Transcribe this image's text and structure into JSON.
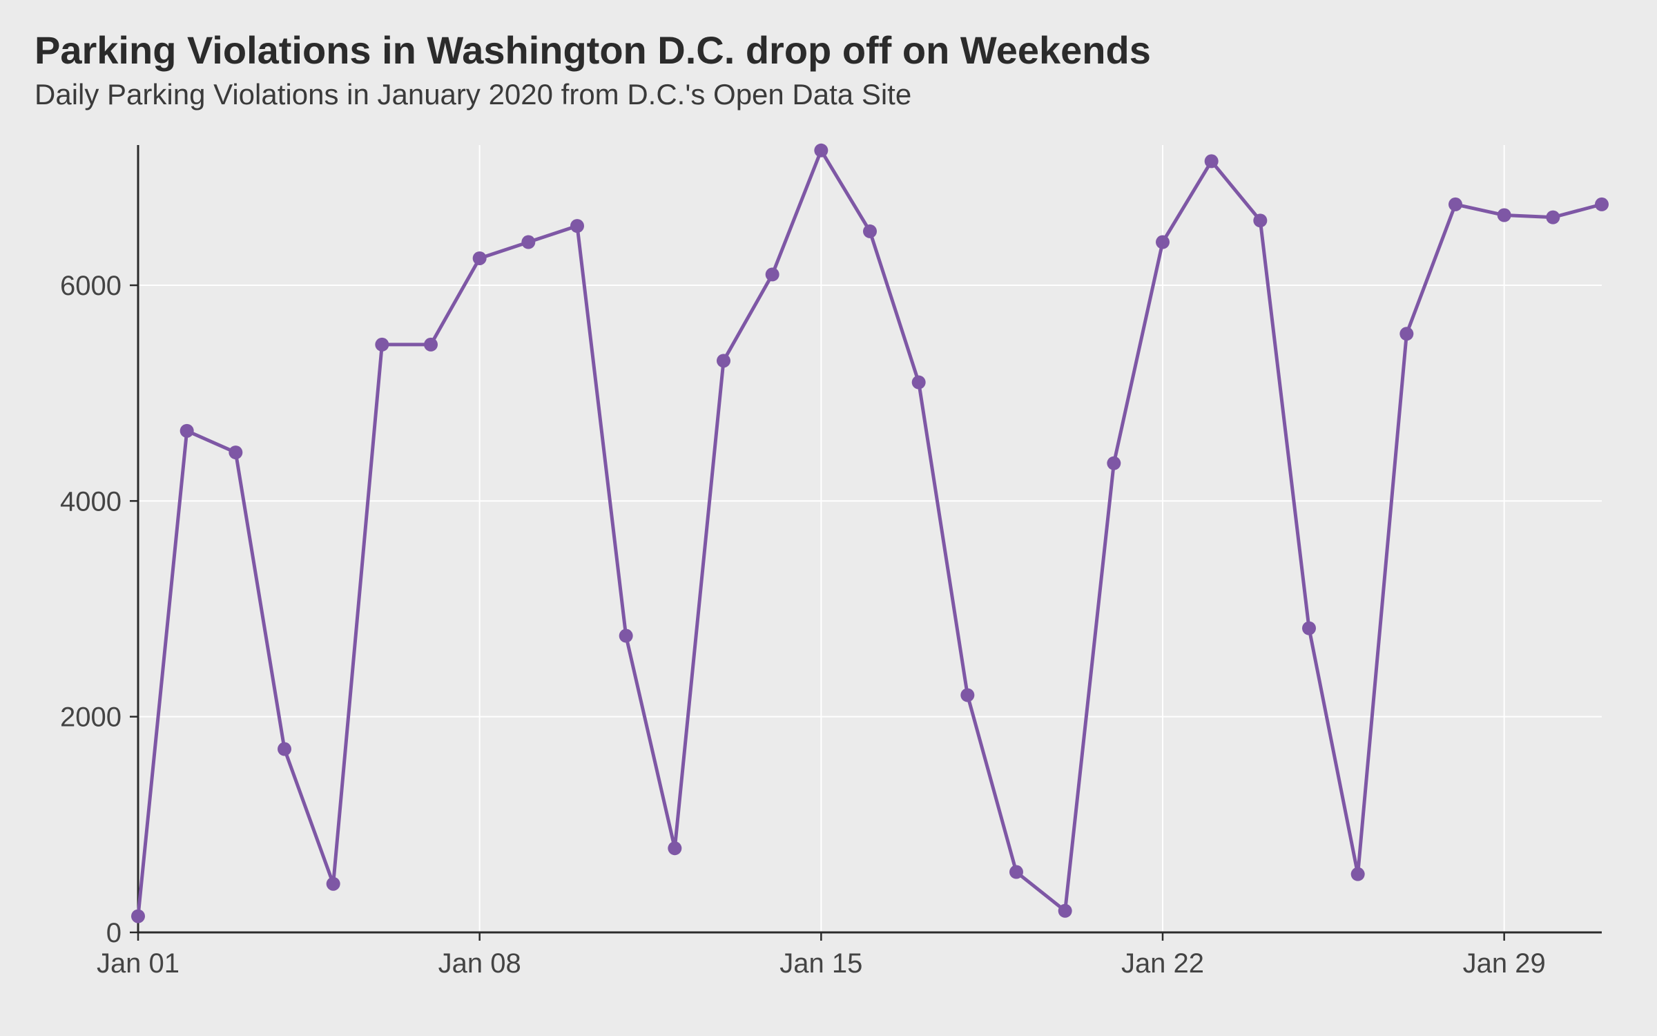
{
  "title": "Parking Violations in Washington D.C. drop off on Weekends",
  "subtitle": "Daily Parking Violations in January 2020 from D.C.'s Open Data Site",
  "chart": {
    "type": "line",
    "background_color": "#ebebeb",
    "panel_color": "#ebebeb",
    "grid_color": "#ffffff",
    "axis_color": "#2b2b2b",
    "tick_label_color": "#444444",
    "tick_label_fontsize": 40,
    "title_fontsize": 56,
    "subtitle_fontsize": 42,
    "line_color": "#7e57a5",
    "point_color": "#7e57a5",
    "line_width": 5,
    "point_radius": 10,
    "x": {
      "min": 1,
      "max": 31,
      "ticks": [
        1,
        8,
        15,
        22,
        29
      ],
      "tick_labels": [
        "Jan 01",
        "Jan 08",
        "Jan 15",
        "Jan 22",
        "Jan 29"
      ]
    },
    "y": {
      "min": 0,
      "max": 7300,
      "ticks": [
        0,
        2000,
        4000,
        6000
      ],
      "tick_labels": [
        "0",
        "2000",
        "4000",
        "6000"
      ]
    },
    "days": [
      1,
      2,
      3,
      4,
      5,
      6,
      7,
      8,
      9,
      10,
      11,
      12,
      13,
      14,
      15,
      16,
      17,
      18,
      19,
      20,
      21,
      22,
      23,
      24,
      25,
      26,
      27,
      28,
      29,
      30,
      31
    ],
    "values": [
      150,
      4650,
      4450,
      1700,
      450,
      5450,
      5450,
      6250,
      6400,
      6550,
      2750,
      780,
      5300,
      6100,
      7250,
      6500,
      5100,
      2200,
      560,
      200,
      4350,
      6400,
      7150,
      6600,
      2820,
      540,
      5550,
      6750,
      6650,
      6630,
      6750
    ]
  }
}
